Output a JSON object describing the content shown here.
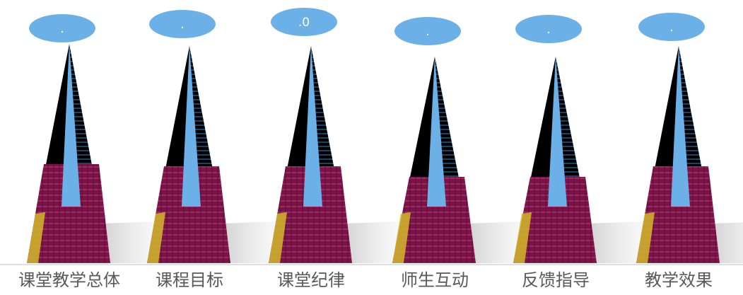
{
  "chart_data": {
    "type": "bar",
    "categories": [
      "课堂教学总体",
      "课程目标",
      "课堂纪律",
      "师生互动",
      "反馈指导",
      "教学效果"
    ],
    "values": [
      null,
      null,
      null,
      null,
      null,
      null
    ],
    "value_labels": [
      ".",
      ".",
      ".0",
      ".",
      ".",
      "."
    ],
    "title": "",
    "xlabel": "",
    "ylabel": "",
    "grid": false,
    "legend": "none",
    "marker_shape": "pyramid",
    "colors": {
      "bubble": "#6cb0e8",
      "pyramid_front": "#6cb0e8",
      "pyramid_dark": "#000000",
      "pyramid_base": "#7a1446",
      "pyramid_stripes": "#2a6fa8",
      "pyramid_accent": "#d4b82a",
      "baseline": "#bfbfbf",
      "label": "#595959"
    }
  }
}
